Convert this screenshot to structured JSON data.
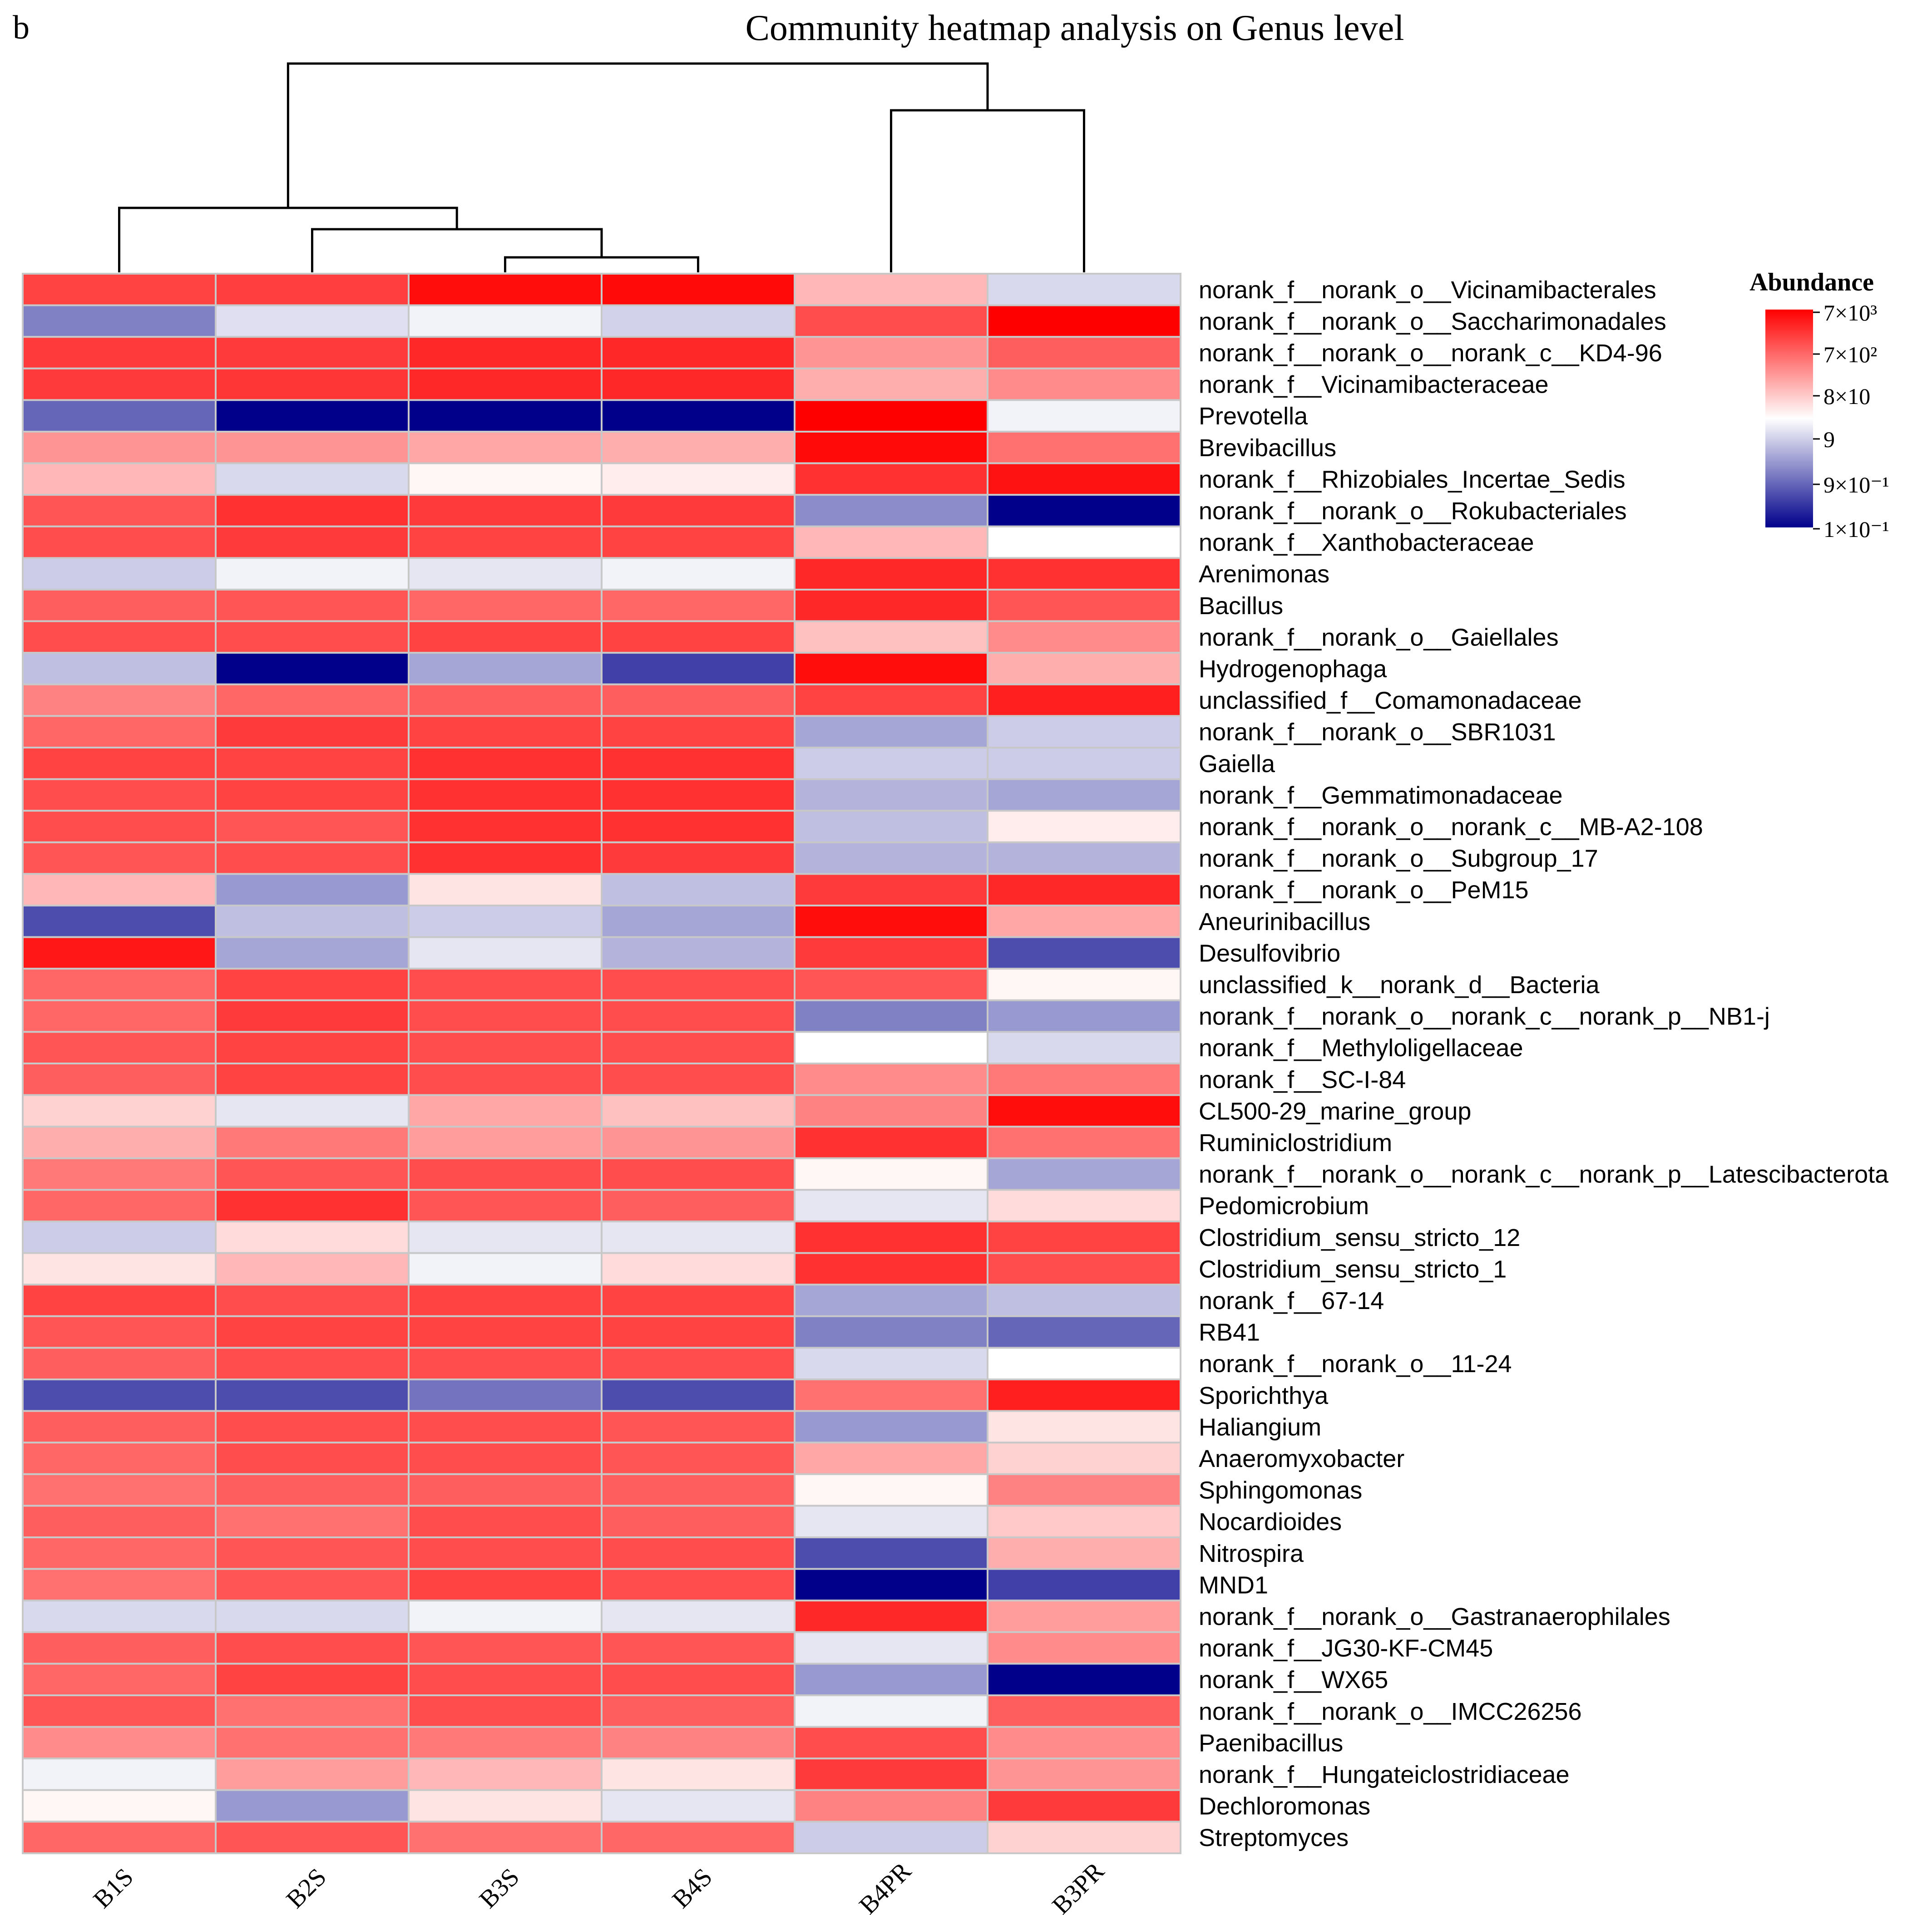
{
  "panel_label": "b",
  "chart_data": {
    "type": "heatmap",
    "title": "Community heatmap analysis on Genus level",
    "columns": [
      "B1S",
      "B2S",
      "B3S",
      "B4S",
      "B4PR",
      "B3PR"
    ],
    "rows": [
      "norank_f__norank_o__Vicinamibacterales",
      "norank_f__norank_o__Saccharimonadales",
      "norank_f__norank_o__norank_c__KD4-96",
      "norank_f__Vicinamibacteraceae",
      "Prevotella",
      "Brevibacillus",
      "norank_f__Rhizobiales_Incertae_Sedis",
      "norank_f__norank_o__Rokubacteriales",
      "norank_f__Xanthobacteraceae",
      "Arenimonas",
      "Bacillus",
      "norank_f__norank_o__Gaiellales",
      "Hydrogenophaga",
      "unclassified_f__Comamonadaceae",
      "norank_f__norank_o__SBR1031",
      "Gaiella",
      "norank_f__Gemmatimonadaceae",
      "norank_f__norank_o__norank_c__MB-A2-108",
      "norank_f__norank_o__Subgroup_17",
      "norank_f__norank_o__PeM15",
      "Aneurinibacillus",
      "Desulfovibrio",
      "unclassified_k__norank_d__Bacteria",
      "norank_f__norank_o__norank_c__norank_p__NB1-j",
      "norank_f__Methyloligellaceae",
      "norank_f__SC-I-84",
      "CL500-29_marine_group",
      "Ruminiclostridium",
      "norank_f__norank_o__norank_c__norank_p__Latescibacterota",
      "Pedomicrobium",
      "Clostridium_sensu_stricto_12",
      "Clostridium_sensu_stricto_1",
      "norank_f__67-14",
      "RB41",
      "norank_f__norank_o__11-24",
      "Sporichthya",
      "Haliangium",
      "Anaeromyxobacter",
      "Sphingomonas",
      "Nocardioides",
      "Nitrospira",
      "MND1",
      "norank_f__norank_o__Gastranaerophilales",
      "norank_f__JG30-KF-CM45",
      "norank_f__WX65",
      "norank_f__norank_o__IMCC26256",
      "Paenibacillus",
      "norank_f__Hungateiclostridiaceae",
      "Dechloromonas",
      "Streptomyces"
    ],
    "color_scale_note": "values are log10 abundance level on the legend scale (-1 = 1x10^-1 ... 3.85 = 7x10^3)",
    "values": [
      [
        3.1,
        3.15,
        3.7,
        3.75,
        1.8,
        0.7
      ],
      [
        0.0,
        0.75,
        0.9,
        0.65,
        3.0,
        3.85
      ],
      [
        3.2,
        3.2,
        3.4,
        3.4,
        2.2,
        2.8
      ],
      [
        3.2,
        3.25,
        3.4,
        3.4,
        1.9,
        2.3
      ],
      [
        -0.2,
        -1.0,
        -1.0,
        -1.0,
        3.85,
        0.9
      ],
      [
        2.2,
        2.2,
        2.0,
        1.9,
        3.75,
        2.6
      ],
      [
        1.8,
        0.7,
        1.1,
        1.2,
        3.3,
        3.65
      ],
      [
        2.9,
        3.3,
        3.2,
        3.2,
        0.1,
        -1.0
      ],
      [
        3.0,
        3.2,
        3.1,
        3.1,
        1.8,
        1.0
      ],
      [
        0.6,
        0.9,
        0.8,
        0.9,
        3.4,
        3.3
      ],
      [
        2.8,
        2.9,
        2.7,
        2.7,
        3.4,
        2.9
      ],
      [
        3.0,
        3.0,
        3.1,
        3.1,
        1.7,
        2.3
      ],
      [
        0.5,
        -1.0,
        0.3,
        -0.5,
        3.7,
        1.9
      ],
      [
        2.4,
        2.7,
        2.8,
        2.8,
        3.1,
        3.5
      ],
      [
        2.7,
        3.2,
        3.1,
        3.1,
        0.3,
        0.6
      ],
      [
        3.1,
        3.1,
        3.3,
        3.3,
        0.6,
        0.6
      ],
      [
        3.0,
        3.1,
        3.3,
        3.3,
        0.4,
        0.3
      ],
      [
        3.0,
        2.9,
        3.3,
        3.3,
        0.5,
        1.2
      ],
      [
        2.9,
        3.0,
        3.3,
        3.2,
        0.4,
        0.4
      ],
      [
        1.8,
        0.2,
        1.3,
        0.5,
        3.2,
        3.4
      ],
      [
        -0.4,
        0.5,
        0.6,
        0.3,
        3.7,
        2.0
      ],
      [
        3.6,
        0.3,
        0.8,
        0.4,
        3.2,
        -0.4
      ],
      [
        2.7,
        3.1,
        3.0,
        3.0,
        2.9,
        1.1
      ],
      [
        2.7,
        3.2,
        3.0,
        3.0,
        0.0,
        0.2
      ],
      [
        2.9,
        3.1,
        3.0,
        3.0,
        1.0,
        0.7
      ],
      [
        2.8,
        3.1,
        3.0,
        3.0,
        2.3,
        2.5
      ],
      [
        1.5,
        0.8,
        2.0,
        1.7,
        2.4,
        3.7
      ],
      [
        1.9,
        2.5,
        2.1,
        2.2,
        3.3,
        2.6
      ],
      [
        2.5,
        2.9,
        3.0,
        3.0,
        1.1,
        0.3
      ],
      [
        2.7,
        3.3,
        2.9,
        2.8,
        0.8,
        1.4
      ],
      [
        0.6,
        1.4,
        0.8,
        0.8,
        3.3,
        3.1
      ],
      [
        1.3,
        1.8,
        0.9,
        1.4,
        3.3,
        3.0
      ],
      [
        3.1,
        3.0,
        3.1,
        3.1,
        0.3,
        0.5
      ],
      [
        2.9,
        3.1,
        3.1,
        3.1,
        0.0,
        -0.2
      ],
      [
        2.8,
        3.0,
        3.0,
        3.0,
        0.7,
        1.0
      ],
      [
        -0.4,
        -0.4,
        -0.1,
        -0.4,
        2.6,
        3.5
      ],
      [
        2.8,
        3.0,
        3.0,
        2.9,
        0.2,
        1.3
      ],
      [
        2.7,
        3.0,
        3.0,
        2.9,
        2.0,
        1.5
      ],
      [
        2.6,
        2.8,
        2.8,
        2.8,
        1.1,
        2.4
      ],
      [
        2.8,
        2.6,
        3.0,
        2.8,
        0.8,
        1.6
      ],
      [
        2.7,
        2.9,
        3.0,
        3.0,
        -0.4,
        1.9
      ],
      [
        2.6,
        2.9,
        3.1,
        3.0,
        -1.0,
        -0.5
      ],
      [
        0.7,
        0.7,
        0.9,
        0.8,
        3.4,
        2.1
      ],
      [
        2.8,
        3.0,
        2.9,
        2.9,
        0.8,
        2.3
      ],
      [
        2.7,
        3.1,
        3.0,
        3.0,
        0.2,
        -1.0
      ],
      [
        2.9,
        2.6,
        3.0,
        2.8,
        0.9,
        2.8
      ],
      [
        2.3,
        2.6,
        2.5,
        2.4,
        3.0,
        2.3
      ],
      [
        0.9,
        2.1,
        1.8,
        1.3,
        3.2,
        2.2
      ],
      [
        1.1,
        0.2,
        1.3,
        0.8,
        2.4,
        3.2
      ],
      [
        2.7,
        2.9,
        2.6,
        2.7,
        0.6,
        1.5
      ]
    ],
    "legend": {
      "title": "Abundance",
      "labels": [
        "7×10³",
        "7×10²",
        "8×10",
        "9",
        "9×10⁻¹",
        "1×10⁻¹"
      ]
    },
    "column_dendrogram": "((B1S,(B2S,(B3S,B4S))),(B4PR,B3PR))",
    "colors": {
      "high": "#ff0000",
      "mid": "#ffffff",
      "low": "#00008b",
      "grid": "#c8c8c8"
    }
  }
}
